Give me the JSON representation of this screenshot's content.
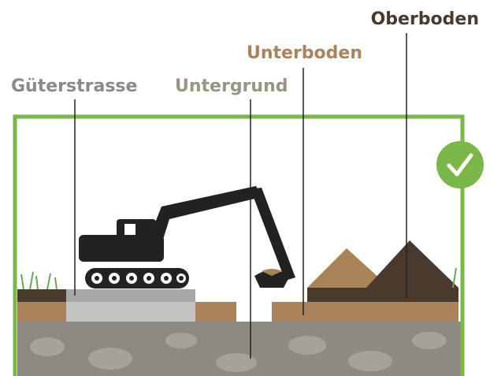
{
  "labels": {
    "oberboden": "Oberboden",
    "unterboden": "Unterboden",
    "gueterstrasse": "Güterstrasse",
    "untergrund": "Untergrund"
  }
}
